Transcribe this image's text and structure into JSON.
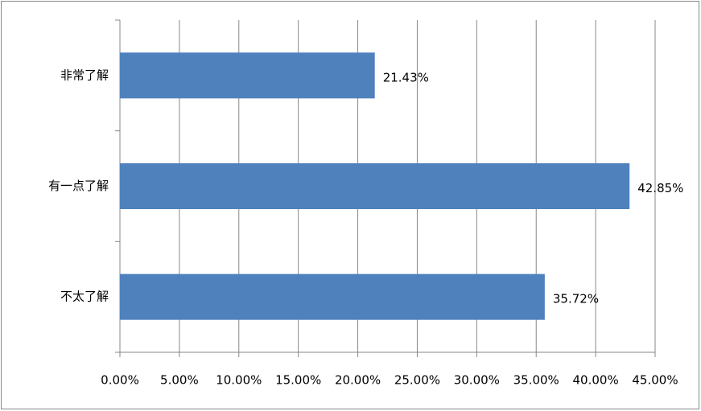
{
  "chart_data": {
    "type": "hbar",
    "categories": [
      "非常了解",
      "有一点了解",
      "不太了解"
    ],
    "values": [
      21.43,
      42.85,
      35.72
    ],
    "value_labels": [
      "21.43%",
      "42.85%",
      "35.72%"
    ],
    "color": "#4f81bd",
    "xlim": [
      0,
      45
    ],
    "xticks": [
      {
        "value": 0,
        "label": "0.00%"
      },
      {
        "value": 5,
        "label": "5.00%"
      },
      {
        "value": 10,
        "label": "10.00%"
      },
      {
        "value": 15,
        "label": "15.00%"
      },
      {
        "value": 20,
        "label": "20.00%"
      },
      {
        "value": 25,
        "label": "25.00%"
      },
      {
        "value": 30,
        "label": "30.00%"
      },
      {
        "value": 35,
        "label": "35.00%"
      },
      {
        "value": 40,
        "label": "40.00%"
      },
      {
        "value": 45,
        "label": "45.00%"
      }
    ],
    "grid": true
  }
}
